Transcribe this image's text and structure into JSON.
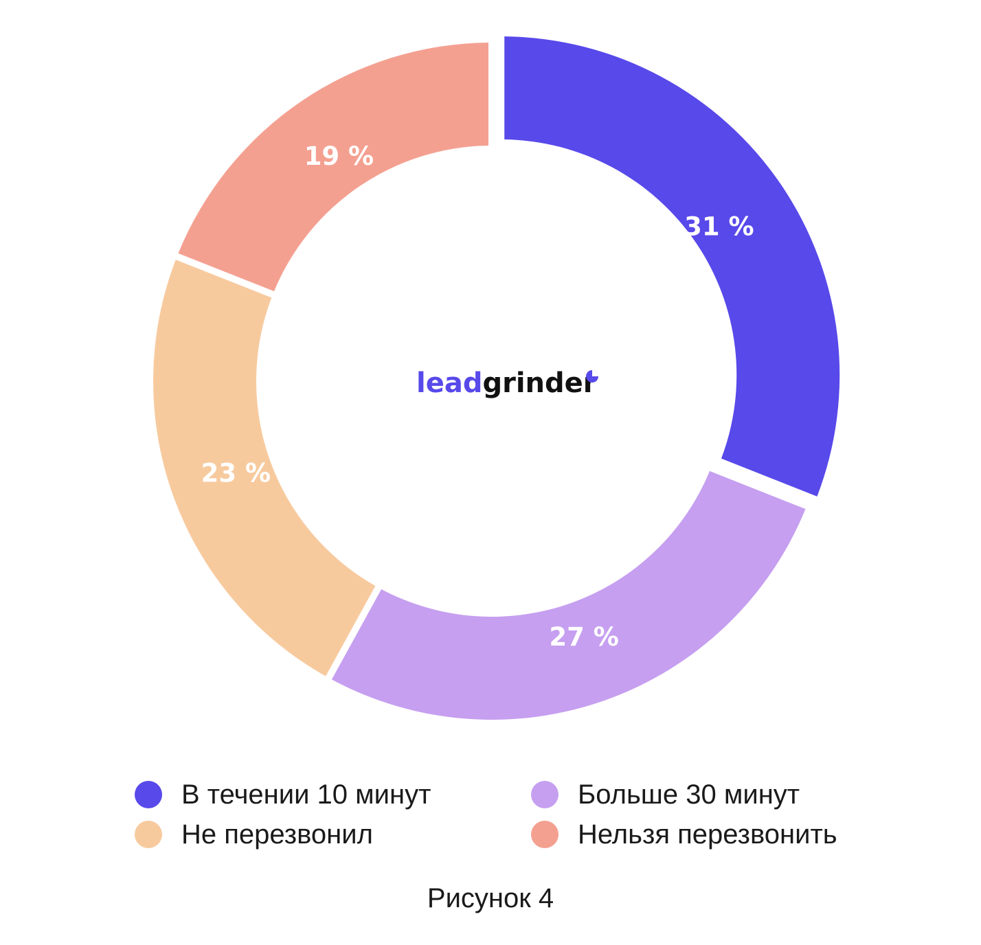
{
  "chart_data": {
    "type": "pie",
    "categories": [
      "В течении 10 минут",
      "Больше 30 минут",
      "Не перезвонил",
      "Нельзя перезвонить"
    ],
    "values": [
      31,
      27,
      23,
      19
    ],
    "value_labels": [
      "31 %",
      "27 %",
      "23 %",
      "19 %"
    ],
    "colors": [
      "#5849EA",
      "#C69FF0",
      "#F7CA9E",
      "#F4A091"
    ],
    "donut": true,
    "exploded": [
      "В течении 10 минут"
    ],
    "legend_position": "bottom",
    "center_logo": {
      "part1": "lead",
      "part2": "grinder",
      "part1_color": "#5849EA",
      "part2_color": "#111111"
    }
  },
  "legend": {
    "items": [
      {
        "label": "В течении 10 минут",
        "color": "#5849EA"
      },
      {
        "label": "Больше 30 минут",
        "color": "#C69FF0"
      },
      {
        "label": "Не перезвонил",
        "color": "#F7CA9E"
      },
      {
        "label": "Нельзя перезвонить",
        "color": "#F4A091"
      }
    ]
  },
  "caption": "Рисунок 4"
}
